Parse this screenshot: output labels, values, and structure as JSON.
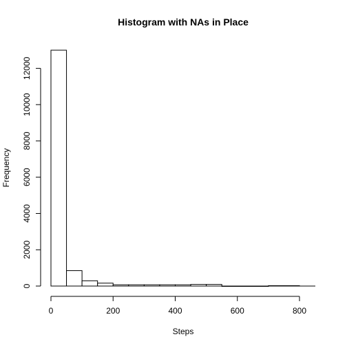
{
  "chart_data": {
    "type": "bar",
    "title": "Histogram with NAs in Place",
    "xlabel": "Steps",
    "ylabel": "Frequency",
    "xlim": [
      0,
      850
    ],
    "ylim": [
      0,
      13000
    ],
    "x_ticks": [
      0,
      200,
      400,
      600,
      800
    ],
    "x_tick_labels": [
      "0",
      "200",
      "400",
      "600",
      "800"
    ],
    "y_ticks": [
      0,
      2000,
      4000,
      6000,
      8000,
      10000,
      12000
    ],
    "y_tick_labels": [
      "0",
      "2000",
      "4000",
      "6000",
      "8000",
      "10000",
      "12000"
    ],
    "bin_width": 50,
    "bins": [
      {
        "start": 0,
        "end": 50,
        "count": 13000
      },
      {
        "start": 50,
        "end": 100,
        "count": 850
      },
      {
        "start": 100,
        "end": 150,
        "count": 290
      },
      {
        "start": 150,
        "end": 200,
        "count": 160
      },
      {
        "start": 200,
        "end": 250,
        "count": 70
      },
      {
        "start": 250,
        "end": 300,
        "count": 70
      },
      {
        "start": 300,
        "end": 350,
        "count": 70
      },
      {
        "start": 350,
        "end": 400,
        "count": 70
      },
      {
        "start": 400,
        "end": 450,
        "count": 70
      },
      {
        "start": 450,
        "end": 500,
        "count": 90
      },
      {
        "start": 500,
        "end": 550,
        "count": 90
      },
      {
        "start": 550,
        "end": 600,
        "count": 0
      },
      {
        "start": 600,
        "end": 650,
        "count": 0
      },
      {
        "start": 650,
        "end": 700,
        "count": 0
      },
      {
        "start": 700,
        "end": 750,
        "count": 20
      },
      {
        "start": 750,
        "end": 800,
        "count": 20
      }
    ]
  }
}
